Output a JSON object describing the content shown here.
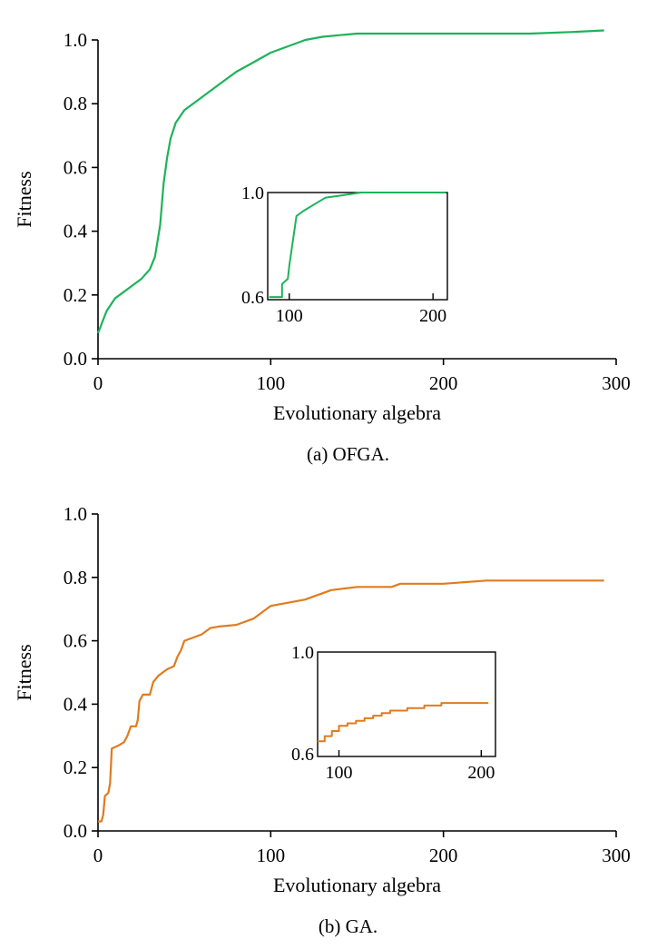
{
  "colors": {
    "ofga": "#1db35a",
    "ga": "#e07b1f",
    "axis": "#000000"
  },
  "chart_data": [
    {
      "type": "line",
      "caption": "(a)  OFGA.",
      "xlabel": "Evolutionary algebra",
      "ylabel": "Fitness",
      "xlim": [
        0,
        300
      ],
      "ylim": [
        0,
        1.0
      ],
      "xticks": [
        "0",
        "100",
        "200",
        "300"
      ],
      "yticks": [
        "0.0",
        "0.2",
        "0.4",
        "0.6",
        "0.8",
        "1.0"
      ],
      "series": [
        {
          "color": "#1db35a",
          "x": [
            0,
            5,
            10,
            15,
            20,
            25,
            30,
            33,
            36,
            38,
            40,
            42,
            45,
            50,
            55,
            60,
            70,
            80,
            90,
            100,
            110,
            120,
            130,
            140,
            150,
            175,
            200,
            225,
            250,
            275,
            293
          ],
          "y": [
            0.08,
            0.15,
            0.19,
            0.21,
            0.23,
            0.25,
            0.28,
            0.32,
            0.42,
            0.55,
            0.63,
            0.69,
            0.74,
            0.78,
            0.8,
            0.82,
            0.86,
            0.9,
            0.93,
            0.96,
            0.98,
            1.0,
            1.01,
            1.015,
            1.02,
            1.02,
            1.02,
            1.02,
            1.02,
            1.025,
            1.03
          ]
        }
      ],
      "inset": {
        "xticks": [
          "100",
          "200"
        ],
        "yticks": [
          "0.6",
          "1.0"
        ],
        "xlim": [
          85,
          210
        ],
        "ylim": [
          0.59,
          1.0
        ],
        "x": [
          86,
          91,
          91,
          95,
          95,
          99,
          100,
          105,
          110,
          125,
          150,
          175,
          209
        ],
        "y": [
          0.6,
          0.6,
          0.6,
          0.6,
          0.65,
          0.67,
          0.72,
          0.91,
          0.93,
          0.98,
          1.0,
          1.0,
          1.0
        ]
      }
    },
    {
      "type": "line",
      "caption": "(b)  GA.",
      "xlabel": "Evolutionary algebra",
      "ylabel": "Fitness",
      "xlim": [
        0,
        300
      ],
      "ylim": [
        0,
        1.0
      ],
      "xticks": [
        "0",
        "100",
        "200",
        "300"
      ],
      "yticks": [
        "0.0",
        "0.2",
        "0.4",
        "0.6",
        "0.8",
        "1.0"
      ],
      "series": [
        {
          "color": "#e07b1f",
          "x": [
            0,
            2,
            3,
            4,
            6,
            7,
            8,
            12,
            15,
            17,
            19,
            22,
            23,
            24,
            26,
            30,
            32,
            35,
            40,
            44,
            46,
            48,
            50,
            55,
            60,
            65,
            70,
            80,
            90,
            95,
            100,
            110,
            120,
            125,
            130,
            135,
            150,
            170,
            175,
            200,
            225,
            250,
            275,
            293
          ],
          "y": [
            0.03,
            0.03,
            0.05,
            0.11,
            0.12,
            0.15,
            0.26,
            0.27,
            0.28,
            0.3,
            0.33,
            0.33,
            0.35,
            0.41,
            0.43,
            0.43,
            0.47,
            0.49,
            0.51,
            0.52,
            0.55,
            0.57,
            0.6,
            0.61,
            0.62,
            0.64,
            0.645,
            0.65,
            0.67,
            0.69,
            0.71,
            0.72,
            0.73,
            0.74,
            0.75,
            0.76,
            0.77,
            0.77,
            0.78,
            0.78,
            0.79,
            0.79,
            0.79,
            0.79
          ]
        }
      ],
      "inset": {
        "xticks": [
          "100",
          "200"
        ],
        "yticks": [
          "0.6",
          "1.0"
        ],
        "xlim": [
          85,
          210
        ],
        "ylim": [
          0.59,
          1.0
        ],
        "x": [
          85,
          90,
          90,
          95,
          95,
          100,
          100,
          106,
          106,
          112,
          112,
          118,
          118,
          124,
          124,
          130,
          130,
          136,
          136,
          142,
          142,
          148,
          148,
          154,
          154,
          160,
          160,
          166,
          166,
          172,
          172,
          205
        ],
        "y": [
          0.65,
          0.65,
          0.67,
          0.67,
          0.69,
          0.69,
          0.71,
          0.71,
          0.72,
          0.72,
          0.73,
          0.73,
          0.74,
          0.74,
          0.75,
          0.75,
          0.76,
          0.76,
          0.77,
          0.77,
          0.77,
          0.77,
          0.78,
          0.78,
          0.78,
          0.78,
          0.79,
          0.79,
          0.79,
          0.79,
          0.8,
          0.8
        ]
      }
    }
  ]
}
